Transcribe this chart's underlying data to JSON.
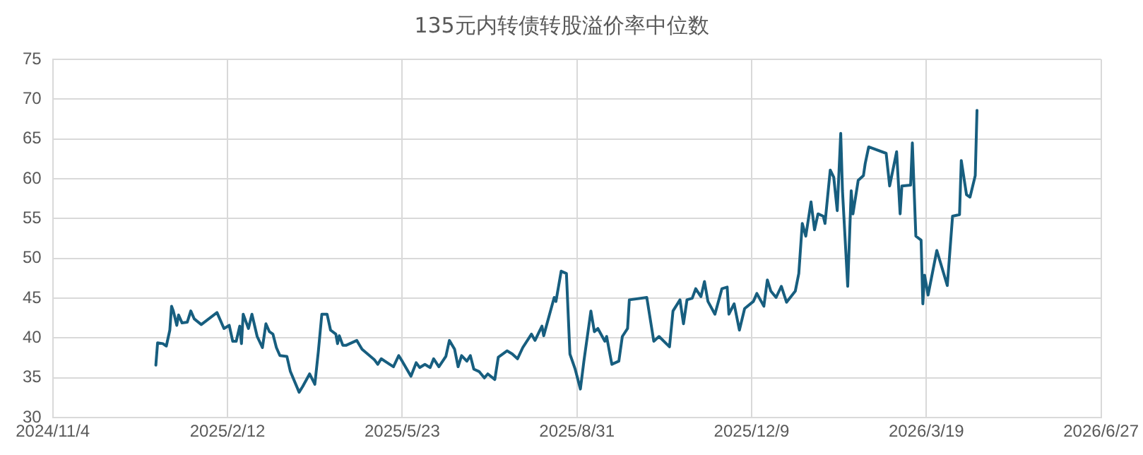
{
  "chart_data": {
    "type": "line",
    "title": "135元内转债转股溢价率中位数",
    "grid": true,
    "legend": false,
    "marker": "none",
    "line_style": "solid",
    "xlim": [
      "2024-11-04",
      "2026-06-27"
    ],
    "xticks": [
      {
        "value": "2024-11-04",
        "label": "2024/11/4"
      },
      {
        "value": "2025-02-12",
        "label": "2025/2/12"
      },
      {
        "value": "2025-05-23",
        "label": "2025/5/23"
      },
      {
        "value": "2025-08-31",
        "label": "2025/8/31"
      },
      {
        "value": "2025-12-09",
        "label": "2025/12/9"
      },
      {
        "value": "2026-03-19",
        "label": "2026/3/19"
      },
      {
        "value": "2026-06-27",
        "label": "2026/6/27"
      }
    ],
    "ylim": [
      30,
      75
    ],
    "yticks": [
      30,
      35,
      40,
      45,
      50,
      55,
      60,
      65,
      70,
      75
    ],
    "x": [
      "2025-01-02",
      "2025-01-03",
      "2025-01-06",
      "2025-01-08",
      "2025-01-10",
      "2025-01-11",
      "2025-01-12",
      "2025-01-14",
      "2025-01-15",
      "2025-01-17",
      "2025-01-20",
      "2025-01-22",
      "2025-01-24",
      "2025-01-28",
      "2025-02-06",
      "2025-02-10",
      "2025-02-13",
      "2025-02-15",
      "2025-02-17",
      "2025-02-19",
      "2025-02-20",
      "2025-02-21",
      "2025-02-24",
      "2025-02-26",
      "2025-03-01",
      "2025-03-04",
      "2025-03-06",
      "2025-03-08",
      "2025-03-10",
      "2025-03-12",
      "2025-03-14",
      "2025-03-18",
      "2025-03-20",
      "2025-03-25",
      "2025-03-27",
      "2025-03-31",
      "2025-04-03",
      "2025-04-05",
      "2025-04-07",
      "2025-04-10",
      "2025-04-12",
      "2025-04-15",
      "2025-04-16",
      "2025-04-17",
      "2025-04-19",
      "2025-04-21",
      "2025-04-27",
      "2025-04-30",
      "2025-05-07",
      "2025-05-09",
      "2025-05-11",
      "2025-05-18",
      "2025-05-21",
      "2025-05-23",
      "2025-05-28",
      "2025-05-31",
      "2025-06-02",
      "2025-06-05",
      "2025-06-08",
      "2025-06-10",
      "2025-06-13",
      "2025-06-17",
      "2025-06-19",
      "2025-06-22",
      "2025-06-24",
      "2025-06-26",
      "2025-06-29",
      "2025-07-01",
      "2025-07-03",
      "2025-07-06",
      "2025-07-09",
      "2025-07-11",
      "2025-07-15",
      "2025-07-17",
      "2025-07-22",
      "2025-07-25",
      "2025-07-28",
      "2025-07-31",
      "2025-08-05",
      "2025-08-07",
      "2025-08-11",
      "2025-08-12",
      "2025-08-18",
      "2025-08-19",
      "2025-08-22",
      "2025-08-25",
      "2025-08-27",
      "2025-08-30",
      "2025-09-02",
      "2025-09-04",
      "2025-09-08",
      "2025-09-10",
      "2025-09-12",
      "2025-09-16",
      "2025-09-17",
      "2025-09-20",
      "2025-09-24",
      "2025-09-26",
      "2025-09-29",
      "2025-09-30",
      "2025-10-10",
      "2025-10-14",
      "2025-10-17",
      "2025-10-23",
      "2025-10-25",
      "2025-10-29",
      "2025-10-31",
      "2025-11-02",
      "2025-11-05",
      "2025-11-07",
      "2025-11-10",
      "2025-11-12",
      "2025-11-14",
      "2025-11-18",
      "2025-11-22",
      "2025-11-25",
      "2025-11-26",
      "2025-11-29",
      "2025-12-02",
      "2025-12-05",
      "2025-12-10",
      "2025-12-12",
      "2025-12-16",
      "2025-12-18",
      "2025-12-20",
      "2025-12-23",
      "2025-12-26",
      "2025-12-29",
      "2026-01-03",
      "2026-01-05",
      "2026-01-07",
      "2026-01-09",
      "2026-01-12",
      "2026-01-14",
      "2026-01-16",
      "2026-01-19",
      "2026-01-20",
      "2026-01-23",
      "2026-01-25",
      "2026-01-27",
      "2026-01-29",
      "2026-01-30",
      "2026-02-02",
      "2026-02-04",
      "2026-02-05",
      "2026-02-08",
      "2026-02-11",
      "2026-02-12",
      "2026-02-14",
      "2026-02-24",
      "2026-02-26",
      "2026-03-02",
      "2026-03-04",
      "2026-03-05",
      "2026-03-10",
      "2026-03-11",
      "2026-03-13",
      "2026-03-16",
      "2026-03-17",
      "2026-03-18",
      "2026-03-20",
      "2026-03-25",
      "2026-03-31",
      "2026-04-03",
      "2026-04-07",
      "2026-04-08",
      "2026-04-11",
      "2026-04-13",
      "2026-04-16",
      "2026-04-17"
    ],
    "series": [
      {
        "color": "#175e7f",
        "values": [
          36.6,
          39.4,
          39.3,
          39.0,
          41.0,
          44.0,
          43.4,
          41.6,
          42.9,
          41.9,
          42.0,
          43.4,
          42.4,
          41.7,
          43.2,
          41.2,
          41.6,
          39.6,
          39.6,
          41.5,
          39.3,
          43.0,
          41.2,
          43.0,
          40.2,
          38.8,
          41.8,
          40.8,
          40.5,
          38.8,
          37.8,
          37.7,
          35.8,
          33.2,
          33.9,
          35.5,
          34.2,
          38.3,
          43.0,
          43.0,
          41.0,
          40.5,
          39.3,
          40.3,
          39.1,
          39.1,
          39.7,
          38.6,
          37.3,
          36.7,
          37.4,
          36.4,
          37.8,
          37.1,
          35.2,
          36.9,
          36.3,
          36.7,
          36.3,
          37.4,
          36.4,
          37.7,
          39.7,
          38.6,
          36.4,
          37.8,
          37.1,
          37.8,
          36.1,
          35.8,
          35.0,
          35.5,
          34.8,
          37.6,
          38.4,
          38.0,
          37.4,
          38.8,
          40.5,
          39.7,
          41.5,
          40.3,
          45.1,
          44.6,
          48.4,
          48.1,
          38.0,
          36.1,
          33.6,
          37.1,
          43.4,
          40.8,
          41.2,
          39.6,
          40.2,
          36.7,
          37.1,
          40.2,
          41.2,
          44.8,
          45.1,
          39.6,
          40.2,
          38.9,
          43.4,
          44.8,
          41.8,
          44.8,
          45.0,
          46.2,
          45.2,
          47.1,
          44.6,
          43.0,
          46.2,
          46.4,
          43.0,
          44.3,
          41.0,
          43.7,
          44.6,
          45.6,
          44.0,
          47.3,
          45.9,
          45.1,
          46.5,
          44.5,
          45.9,
          48.1,
          54.4,
          52.8,
          57.1,
          53.6,
          55.6,
          55.3,
          54.4,
          61.1,
          60.2,
          56.0,
          65.7,
          58.5,
          46.5,
          58.5,
          55.6,
          59.8,
          60.4,
          61.9,
          64.0,
          63.2,
          59.1,
          63.4,
          55.6,
          59.1,
          59.2,
          64.5,
          52.8,
          52.3,
          44.3,
          47.9,
          45.4,
          51.0,
          46.6,
          55.3,
          55.5,
          62.3,
          58.0,
          57.7,
          60.4,
          68.6
        ]
      }
    ]
  }
}
